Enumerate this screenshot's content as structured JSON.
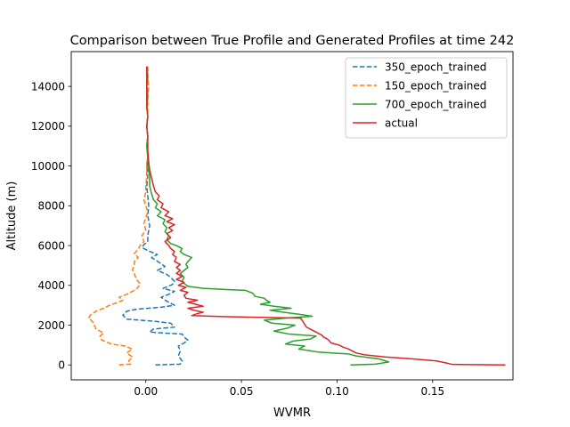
{
  "chart_data": {
    "type": "line",
    "title": "Comparison between True Profile and Generated Profiles at time 242",
    "xlabel": "WVMR",
    "ylabel": "Altitude (m)",
    "xlim": [
      -0.039,
      0.192
    ],
    "ylim": [
      -750,
      15750
    ],
    "xticks": [
      0.0,
      0.05,
      0.1,
      0.15
    ],
    "xtick_labels": [
      "0.00",
      "0.05",
      "0.10",
      "0.15"
    ],
    "yticks": [
      0,
      2000,
      4000,
      6000,
      8000,
      10000,
      12000,
      14000
    ],
    "ytick_labels": [
      "0",
      "2000",
      "4000",
      "6000",
      "8000",
      "10000",
      "12000",
      "14000"
    ],
    "grid": false,
    "legend_position": "upper right",
    "series": [
      {
        "name": "350_epoch_trained",
        "color": "#1f77b4",
        "dash": true,
        "points": [
          [
            0.005,
            0
          ],
          [
            0.018,
            40
          ],
          [
            0.019,
            200
          ],
          [
            0.017,
            450
          ],
          [
            0.018,
            700
          ],
          [
            0.017,
            950
          ],
          [
            0.02,
            1100
          ],
          [
            0.022,
            1250
          ],
          [
            0.02,
            1400
          ],
          [
            0.019,
            1550
          ],
          [
            0.01,
            1600
          ],
          [
            0.002,
            1650
          ],
          [
            0.004,
            1800
          ],
          [
            0.015,
            1900
          ],
          [
            0.013,
            2100
          ],
          [
            0.004,
            2200
          ],
          [
            -0.01,
            2300
          ],
          [
            -0.012,
            2500
          ],
          [
            -0.01,
            2700
          ],
          [
            -0.005,
            2800
          ],
          [
            0.008,
            2900
          ],
          [
            0.015,
            3000
          ],
          [
            0.011,
            3200
          ],
          [
            0.008,
            3400
          ],
          [
            0.012,
            3550
          ],
          [
            0.015,
            3700
          ],
          [
            0.009,
            3850
          ],
          [
            0.014,
            4050
          ],
          [
            0.015,
            4200
          ],
          [
            0.013,
            4400
          ],
          [
            0.011,
            4550
          ],
          [
            0.006,
            4750
          ],
          [
            0.01,
            4950
          ],
          [
            0.007,
            5150
          ],
          [
            0.003,
            5400
          ],
          [
            0.006,
            5550
          ],
          [
            0.001,
            5750
          ],
          [
            -0.002,
            5900
          ],
          [
            -0.001,
            6050
          ],
          [
            0.001,
            6200
          ],
          [
            0.001,
            6500
          ],
          [
            0.002,
            7000
          ],
          [
            0.001,
            7500
          ],
          [
            0.0015,
            8000
          ],
          [
            0.001,
            8500
          ],
          [
            0.0005,
            9000
          ],
          [
            0.001,
            9500
          ],
          [
            0.0005,
            10000
          ],
          [
            0.001,
            10500
          ],
          [
            0.0005,
            11000
          ],
          [
            0.001,
            11500
          ],
          [
            0.0005,
            12000
          ],
          [
            0.001,
            12500
          ],
          [
            0.0005,
            13000
          ],
          [
            0.001,
            13500
          ],
          [
            0.0005,
            14000
          ],
          [
            0.001,
            14500
          ],
          [
            0.0005,
            15000
          ]
        ]
      },
      {
        "name": "150_epoch_trained",
        "color": "#ff7f0e",
        "dash": true,
        "points": [
          [
            -0.014,
            0
          ],
          [
            -0.008,
            40
          ],
          [
            -0.009,
            200
          ],
          [
            -0.007,
            400
          ],
          [
            -0.01,
            600
          ],
          [
            -0.007,
            800
          ],
          [
            -0.011,
            950
          ],
          [
            -0.018,
            1050
          ],
          [
            -0.023,
            1250
          ],
          [
            -0.024,
            1450
          ],
          [
            -0.022,
            1600
          ],
          [
            -0.026,
            1800
          ],
          [
            -0.027,
            2000
          ],
          [
            -0.028,
            2200
          ],
          [
            -0.03,
            2350
          ],
          [
            -0.029,
            2500
          ],
          [
            -0.026,
            2700
          ],
          [
            -0.022,
            2850
          ],
          [
            -0.019,
            3000
          ],
          [
            -0.016,
            3100
          ],
          [
            -0.012,
            3250
          ],
          [
            -0.014,
            3400
          ],
          [
            -0.01,
            3550
          ],
          [
            -0.006,
            3750
          ],
          [
            -0.004,
            3900
          ],
          [
            -0.003,
            4100
          ],
          [
            -0.005,
            4300
          ],
          [
            -0.006,
            4600
          ],
          [
            -0.007,
            4800
          ],
          [
            -0.006,
            5000
          ],
          [
            -0.006,
            5200
          ],
          [
            -0.004,
            5400
          ],
          [
            -0.006,
            5600
          ],
          [
            -0.004,
            5800
          ],
          [
            -0.003,
            6000
          ],
          [
            -0.001,
            6200
          ],
          [
            -0.002,
            6500
          ],
          [
            0.0,
            6800
          ],
          [
            -0.001,
            7100
          ],
          [
            0.0,
            7400
          ],
          [
            0.001,
            7700
          ],
          [
            0.0,
            8000
          ],
          [
            -0.001,
            8300
          ],
          [
            0.0,
            8700
          ],
          [
            0.0,
            9000
          ],
          [
            0.0005,
            9500
          ],
          [
            0.0005,
            10000
          ],
          [
            0.001,
            10500
          ],
          [
            0.0005,
            11000
          ],
          [
            0.001,
            11500
          ],
          [
            0.0005,
            12000
          ],
          [
            0.001,
            12500
          ],
          [
            0.001,
            13000
          ],
          [
            0.001,
            13500
          ],
          [
            0.0015,
            14000
          ],
          [
            0.001,
            14500
          ],
          [
            0.001,
            15000
          ]
        ]
      },
      {
        "name": "700_epoch_trained",
        "color": "#2ca02c",
        "dash": false,
        "points": [
          [
            0.107,
            0
          ],
          [
            0.12,
            40
          ],
          [
            0.127,
            150
          ],
          [
            0.122,
            300
          ],
          [
            0.11,
            450
          ],
          [
            0.106,
            550
          ],
          [
            0.09,
            650
          ],
          [
            0.08,
            800
          ],
          [
            0.083,
            950
          ],
          [
            0.073,
            1050
          ],
          [
            0.077,
            1200
          ],
          [
            0.086,
            1300
          ],
          [
            0.089,
            1450
          ],
          [
            0.075,
            1550
          ],
          [
            0.067,
            1700
          ],
          [
            0.074,
            1850
          ],
          [
            0.078,
            2000
          ],
          [
            0.066,
            2100
          ],
          [
            0.062,
            2250
          ],
          [
            0.073,
            2350
          ],
          [
            0.087,
            2450
          ],
          [
            0.08,
            2550
          ],
          [
            0.072,
            2650
          ],
          [
            0.065,
            2750
          ],
          [
            0.076,
            2850
          ],
          [
            0.067,
            2950
          ],
          [
            0.06,
            3050
          ],
          [
            0.065,
            3150
          ],
          [
            0.063,
            3250
          ],
          [
            0.062,
            3350
          ],
          [
            0.057,
            3450
          ],
          [
            0.056,
            3600
          ],
          [
            0.052,
            3750
          ],
          [
            0.04,
            3800
          ],
          [
            0.03,
            3850
          ],
          [
            0.022,
            3950
          ],
          [
            0.02,
            4100
          ],
          [
            0.019,
            4200
          ],
          [
            0.02,
            4400
          ],
          [
            0.018,
            4600
          ],
          [
            0.02,
            4750
          ],
          [
            0.022,
            4900
          ],
          [
            0.021,
            5050
          ],
          [
            0.022,
            5200
          ],
          [
            0.024,
            5400
          ],
          [
            0.02,
            5550
          ],
          [
            0.018,
            5700
          ],
          [
            0.019,
            5850
          ],
          [
            0.016,
            6000
          ],
          [
            0.013,
            6100
          ],
          [
            0.011,
            6300
          ],
          [
            0.012,
            6500
          ],
          [
            0.01,
            6700
          ],
          [
            0.011,
            6900
          ],
          [
            0.009,
            7100
          ],
          [
            0.01,
            7300
          ],
          [
            0.006,
            7500
          ],
          [
            0.008,
            7700
          ],
          [
            0.005,
            7900
          ],
          [
            0.006,
            8100
          ],
          [
            0.004,
            8300
          ],
          [
            0.003,
            8600
          ],
          [
            0.002,
            9000
          ],
          [
            0.002,
            9500
          ],
          [
            0.001,
            10000
          ],
          [
            0.001,
            10500
          ],
          [
            0.0005,
            11000
          ],
          [
            0.001,
            11500
          ],
          [
            0.0005,
            12000
          ],
          [
            0.001,
            12500
          ],
          [
            0.0005,
            13000
          ],
          [
            0.001,
            13500
          ],
          [
            0.0005,
            14000
          ],
          [
            0.001,
            14500
          ],
          [
            0.0005,
            15000
          ]
        ]
      },
      {
        "name": "actual",
        "color": "#d62728",
        "dash": false,
        "points": [
          [
            0.188,
            0
          ],
          [
            0.16,
            30
          ],
          [
            0.157,
            100
          ],
          [
            0.152,
            200
          ],
          [
            0.14,
            300
          ],
          [
            0.125,
            400
          ],
          [
            0.115,
            500
          ],
          [
            0.11,
            600
          ],
          [
            0.108,
            700
          ],
          [
            0.106,
            800
          ],
          [
            0.103,
            900
          ],
          [
            0.101,
            1000
          ],
          [
            0.097,
            1100
          ],
          [
            0.096,
            1200
          ],
          [
            0.095,
            1300
          ],
          [
            0.093,
            1400
          ],
          [
            0.092,
            1500
          ],
          [
            0.09,
            1600
          ],
          [
            0.088,
            1700
          ],
          [
            0.086,
            1800
          ],
          [
            0.084,
            1900
          ],
          [
            0.083,
            2050
          ],
          [
            0.082,
            2200
          ],
          [
            0.081,
            2350
          ],
          [
            0.04,
            2430
          ],
          [
            0.024,
            2480
          ],
          [
            0.026,
            2550
          ],
          [
            0.03,
            2650
          ],
          [
            0.025,
            2750
          ],
          [
            0.022,
            2850
          ],
          [
            0.03,
            2950
          ],
          [
            0.026,
            3050
          ],
          [
            0.022,
            3150
          ],
          [
            0.027,
            3250
          ],
          [
            0.021,
            3350
          ],
          [
            0.02,
            3500
          ],
          [
            0.022,
            3650
          ],
          [
            0.018,
            3750
          ],
          [
            0.021,
            3900
          ],
          [
            0.017,
            4000
          ],
          [
            0.02,
            4150
          ],
          [
            0.016,
            4300
          ],
          [
            0.019,
            4450
          ],
          [
            0.016,
            4600
          ],
          [
            0.018,
            4750
          ],
          [
            0.016,
            4900
          ],
          [
            0.018,
            5050
          ],
          [
            0.015,
            5200
          ],
          [
            0.016,
            5400
          ],
          [
            0.014,
            5550
          ],
          [
            0.015,
            5700
          ],
          [
            0.013,
            5850
          ],
          [
            0.012,
            6000
          ],
          [
            0.01,
            6200
          ],
          [
            0.013,
            6400
          ],
          [
            0.011,
            6600
          ],
          [
            0.014,
            6750
          ],
          [
            0.012,
            6900
          ],
          [
            0.015,
            7050
          ],
          [
            0.011,
            7200
          ],
          [
            0.014,
            7350
          ],
          [
            0.01,
            7500
          ],
          [
            0.012,
            7700
          ],
          [
            0.008,
            7900
          ],
          [
            0.009,
            8100
          ],
          [
            0.006,
            8300
          ],
          [
            0.007,
            8500
          ],
          [
            0.005,
            8700
          ],
          [
            0.004,
            9000
          ],
          [
            0.003,
            9400
          ],
          [
            0.002,
            9800
          ],
          [
            0.0015,
            10200
          ],
          [
            0.001,
            10800
          ],
          [
            0.001,
            11500
          ],
          [
            0.0005,
            12000
          ],
          [
            0.001,
            12500
          ],
          [
            0.0005,
            13000
          ],
          [
            0.0005,
            13500
          ],
          [
            0.0005,
            14000
          ],
          [
            0.0005,
            14500
          ],
          [
            0.0005,
            15000
          ]
        ]
      }
    ]
  }
}
